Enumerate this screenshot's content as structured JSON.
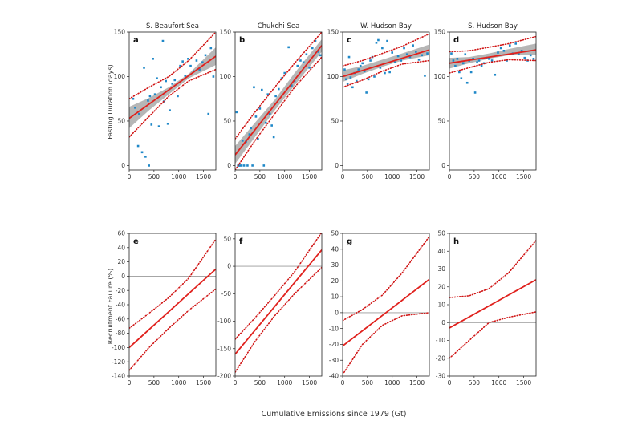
{
  "figure": {
    "xlabel": "Cumulative Emissions since 1979 (Gt)",
    "row_ylabels": [
      "Fasting Duration (days)",
      "Recruitment Failure (%)"
    ]
  },
  "colors": {
    "fit": "#e0211d",
    "ci": "#d01616",
    "band": "#a9a9a9",
    "points": "#1f88c8",
    "zero": "#9a9a9a"
  },
  "chart_data": [
    {
      "type": "scatter",
      "panel": "a",
      "title": "S. Beaufort Sea",
      "xlim": [
        0,
        1750
      ],
      "ylim": [
        -5,
        150
      ],
      "xticks": [
        0,
        500,
        1000,
        1500
      ],
      "yticks": [
        0,
        50,
        100,
        150
      ],
      "fit": {
        "x": [
          0,
          1750
        ],
        "y": [
          53,
          123
        ]
      },
      "ci_upper": {
        "x": [
          0,
          400,
          800,
          1200,
          1750
        ],
        "y": [
          75,
          88,
          100,
          118,
          150
        ]
      },
      "ci_lower": {
        "x": [
          0,
          400,
          800,
          1200,
          1750
        ],
        "y": [
          32,
          55,
          78,
          95,
          108
        ]
      },
      "band_upper": {
        "x": [
          0,
          400,
          800,
          1200,
          1750
        ],
        "y": [
          66,
          76,
          88,
          103,
          133
        ]
      },
      "band_lower": {
        "x": [
          0,
          400,
          800,
          1200,
          1750
        ],
        "y": [
          42,
          62,
          80,
          98,
          113
        ]
      },
      "points": {
        "x": [
          80,
          120,
          180,
          200,
          260,
          300,
          330,
          380,
          400,
          420,
          450,
          480,
          520,
          560,
          600,
          640,
          680,
          700,
          740,
          780,
          820,
          870,
          920,
          980,
          1030,
          1080,
          1130,
          1190,
          1240,
          1300,
          1360,
          1420,
          1480,
          1540,
          1600,
          1650,
          1700
        ],
        "y": [
          75,
          65,
          22,
          58,
          15,
          110,
          10,
          73,
          0,
          78,
          46,
          120,
          80,
          98,
          44,
          88,
          140,
          72,
          95,
          47,
          62,
          92,
          96,
          78,
          112,
          117,
          101,
          120,
          112,
          106,
          118,
          108,
          116,
          124,
          58,
          132,
          100
        ]
      }
    },
    {
      "type": "scatter",
      "panel": "b",
      "title": "Chukchi Sea",
      "xlim": [
        0,
        1750
      ],
      "ylim": [
        -5,
        150
      ],
      "xticks": [
        0,
        500,
        1000,
        1500
      ],
      "yticks": [
        0,
        50,
        100,
        150
      ],
      "fit": {
        "x": [
          0,
          1750
        ],
        "y": [
          12,
          135
        ]
      },
      "ci_upper": {
        "x": [
          0,
          400,
          800,
          1200,
          1750
        ],
        "y": [
          30,
          60,
          88,
          115,
          150
        ]
      },
      "ci_lower": {
        "x": [
          0,
          400,
          800,
          1200,
          1750
        ],
        "y": [
          -5,
          28,
          58,
          88,
          122
        ]
      },
      "band_upper": {
        "x": [
          0,
          400,
          800,
          1200,
          1750
        ],
        "y": [
          22,
          48,
          74,
          104,
          142
        ]
      },
      "band_lower": {
        "x": [
          0,
          400,
          800,
          1200,
          1750
        ],
        "y": [
          2,
          32,
          62,
          90,
          128
        ]
      },
      "points": {
        "x": [
          30,
          60,
          80,
          100,
          130,
          150,
          180,
          220,
          250,
          290,
          320,
          350,
          380,
          420,
          460,
          500,
          540,
          580,
          620,
          660,
          700,
          740,
          780,
          820,
          880,
          940,
          1000,
          1080,
          1140,
          1200,
          1260,
          1320,
          1380,
          1440,
          1500,
          1560,
          1620,
          1680,
          1720
        ],
        "y": [
          60,
          0,
          0,
          0,
          0,
          28,
          0,
          27,
          0,
          35,
          42,
          0,
          88,
          55,
          30,
          64,
          85,
          0,
          48,
          80,
          58,
          45,
          32,
          78,
          86,
          98,
          104,
          133,
          90,
          95,
          112,
          118,
          116,
          125,
          110,
          132,
          140,
          128,
          124
        ]
      }
    },
    {
      "type": "scatter",
      "panel": "c",
      "title": "W. Hudson Bay",
      "xlim": [
        0,
        1750
      ],
      "ylim": [
        -5,
        150
      ],
      "xticks": [
        0,
        500,
        1000,
        1500
      ],
      "yticks": [
        0,
        50,
        100,
        150
      ],
      "fit": {
        "x": [
          0,
          1750
        ],
        "y": [
          100,
          130
        ]
      },
      "ci_upper": {
        "x": [
          0,
          400,
          800,
          1200,
          1750
        ],
        "y": [
          112,
          118,
          126,
          134,
          148
        ]
      },
      "ci_lower": {
        "x": [
          0,
          400,
          800,
          1200,
          1750
        ],
        "y": [
          88,
          96,
          106,
          114,
          118
        ]
      },
      "band_upper": {
        "x": [
          0,
          400,
          800,
          1200,
          1750
        ],
        "y": [
          107,
          112,
          119,
          126,
          136
        ]
      },
      "band_lower": {
        "x": [
          0,
          400,
          800,
          1200,
          1750
        ],
        "y": [
          94,
          103,
          111,
          118,
          124
        ]
      },
      "points": {
        "x": [
          40,
          70,
          100,
          130,
          160,
          200,
          240,
          280,
          320,
          360,
          400,
          440,
          480,
          520,
          560,
          600,
          640,
          680,
          720,
          760,
          800,
          850,
          900,
          950,
          1000,
          1060,
          1120,
          1180,
          1240,
          1300,
          1360,
          1420,
          1480,
          1540,
          1600,
          1660,
          1710
        ],
        "y": [
          108,
          97,
          92,
          122,
          99,
          88,
          104,
          95,
          108,
          112,
          115,
          106,
          82,
          97,
          118,
          122,
          100,
          138,
          141,
          110,
          132,
          104,
          140,
          105,
          127,
          116,
          123,
          118,
          132,
          125,
          122,
          135,
          128,
          119,
          124,
          101,
          126
        ]
      }
    },
    {
      "type": "scatter",
      "panel": "d",
      "title": "S. Hudson Bay",
      "xlim": [
        0,
        1750
      ],
      "ylim": [
        -5,
        150
      ],
      "xticks": [
        0,
        500,
        1000,
        1500
      ],
      "yticks": [
        0,
        50,
        100,
        150
      ],
      "fit": {
        "x": [
          0,
          1750
        ],
        "y": [
          115,
          130
        ]
      },
      "ci_upper": {
        "x": [
          0,
          400,
          800,
          1200,
          1750
        ],
        "y": [
          128,
          129,
          133,
          137,
          145
        ]
      },
      "ci_lower": {
        "x": [
          0,
          400,
          800,
          1200,
          1750
        ],
        "y": [
          104,
          110,
          116,
          119,
          118
        ]
      },
      "band_upper": {
        "x": [
          0,
          400,
          800,
          1200,
          1750
        ],
        "y": [
          121,
          122,
          126,
          131,
          137
        ]
      },
      "band_lower": {
        "x": [
          0,
          400,
          800,
          1200,
          1750
        ],
        "y": [
          109,
          115,
          120,
          124,
          124
        ]
      },
      "points": {
        "x": [
          40,
          80,
          120,
          160,
          200,
          240,
          280,
          320,
          360,
          400,
          440,
          480,
          520,
          560,
          600,
          650,
          700,
          750,
          800,
          860,
          920,
          980,
          1040,
          1100,
          1160,
          1220,
          1280,
          1340,
          1400,
          1460,
          1520,
          1580,
          1640,
          1700
        ],
        "y": [
          126,
          118,
          112,
          120,
          105,
          98,
          115,
          125,
          93,
          118,
          105,
          120,
          82,
          116,
          118,
          112,
          115,
          121,
          120,
          118,
          102,
          127,
          132,
          129,
          118,
          135,
          126,
          137,
          125,
          129,
          121,
          118,
          124,
          120
        ]
      }
    },
    {
      "type": "line",
      "panel": "e",
      "title": "",
      "xlim": [
        0,
        1750
      ],
      "ylim": [
        -140,
        60
      ],
      "xticks": [
        0,
        500,
        1000,
        1500
      ],
      "yticks": [
        -140,
        -120,
        -100,
        -80,
        -60,
        -40,
        -20,
        0,
        20,
        40,
        60
      ],
      "fit": {
        "x": [
          0,
          1750
        ],
        "y": [
          -100,
          10
        ]
      },
      "ci_upper": {
        "x": [
          0,
          400,
          800,
          1200,
          1750
        ],
        "y": [
          -73,
          -52,
          -30,
          -3,
          52
        ]
      },
      "ci_lower": {
        "x": [
          0,
          400,
          800,
          1200,
          1750
        ],
        "y": [
          -132,
          -100,
          -73,
          -48,
          -18
        ]
      },
      "zero_line": 0
    },
    {
      "type": "line",
      "panel": "f",
      "title": "",
      "xlim": [
        0,
        1750
      ],
      "ylim": [
        -200,
        60
      ],
      "xticks": [
        0,
        500,
        1000,
        1500
      ],
      "yticks": [
        -200,
        -150,
        -100,
        -50,
        0,
        50
      ],
      "fit": {
        "x": [
          0,
          1750
        ],
        "y": [
          -160,
          30
        ]
      },
      "ci_upper": {
        "x": [
          0,
          400,
          800,
          1200,
          1750
        ],
        "y": [
          -133,
          -94,
          -53,
          -10,
          62
        ]
      },
      "ci_lower": {
        "x": [
          0,
          400,
          800,
          1200,
          1750
        ],
        "y": [
          -193,
          -137,
          -90,
          -50,
          -2
        ]
      },
      "zero_line": 0
    },
    {
      "type": "line",
      "panel": "g",
      "title": "",
      "xlim": [
        0,
        1750
      ],
      "ylim": [
        -40,
        50
      ],
      "xticks": [
        0,
        500,
        1000,
        1500
      ],
      "yticks": [
        -40,
        -30,
        -20,
        -10,
        0,
        10,
        20,
        30,
        40,
        50
      ],
      "fit": {
        "x": [
          0,
          1750
        ],
        "y": [
          -21,
          21
        ]
      },
      "ci_upper": {
        "x": [
          0,
          400,
          800,
          1200,
          1750
        ],
        "y": [
          -5,
          2,
          11,
          25,
          48
        ]
      },
      "ci_lower": {
        "x": [
          0,
          400,
          800,
          1200,
          1750
        ],
        "y": [
          -39,
          -20,
          -8,
          -2,
          0
        ]
      },
      "zero_line": 0
    },
    {
      "type": "line",
      "panel": "h",
      "title": "",
      "xlim": [
        0,
        1750
      ],
      "ylim": [
        -30,
        50
      ],
      "xticks": [
        0,
        500,
        1000,
        1500
      ],
      "yticks": [
        -30,
        -20,
        -10,
        0,
        10,
        20,
        30,
        40,
        50
      ],
      "fit": {
        "x": [
          0,
          1750
        ],
        "y": [
          -3,
          24
        ]
      },
      "ci_upper": {
        "x": [
          0,
          400,
          800,
          1200,
          1750
        ],
        "y": [
          14,
          15,
          19,
          28,
          46
        ]
      },
      "ci_lower": {
        "x": [
          0,
          400,
          800,
          1200,
          1750
        ],
        "y": [
          -20,
          -10,
          0,
          3,
          6
        ]
      },
      "zero_line": 0
    }
  ]
}
